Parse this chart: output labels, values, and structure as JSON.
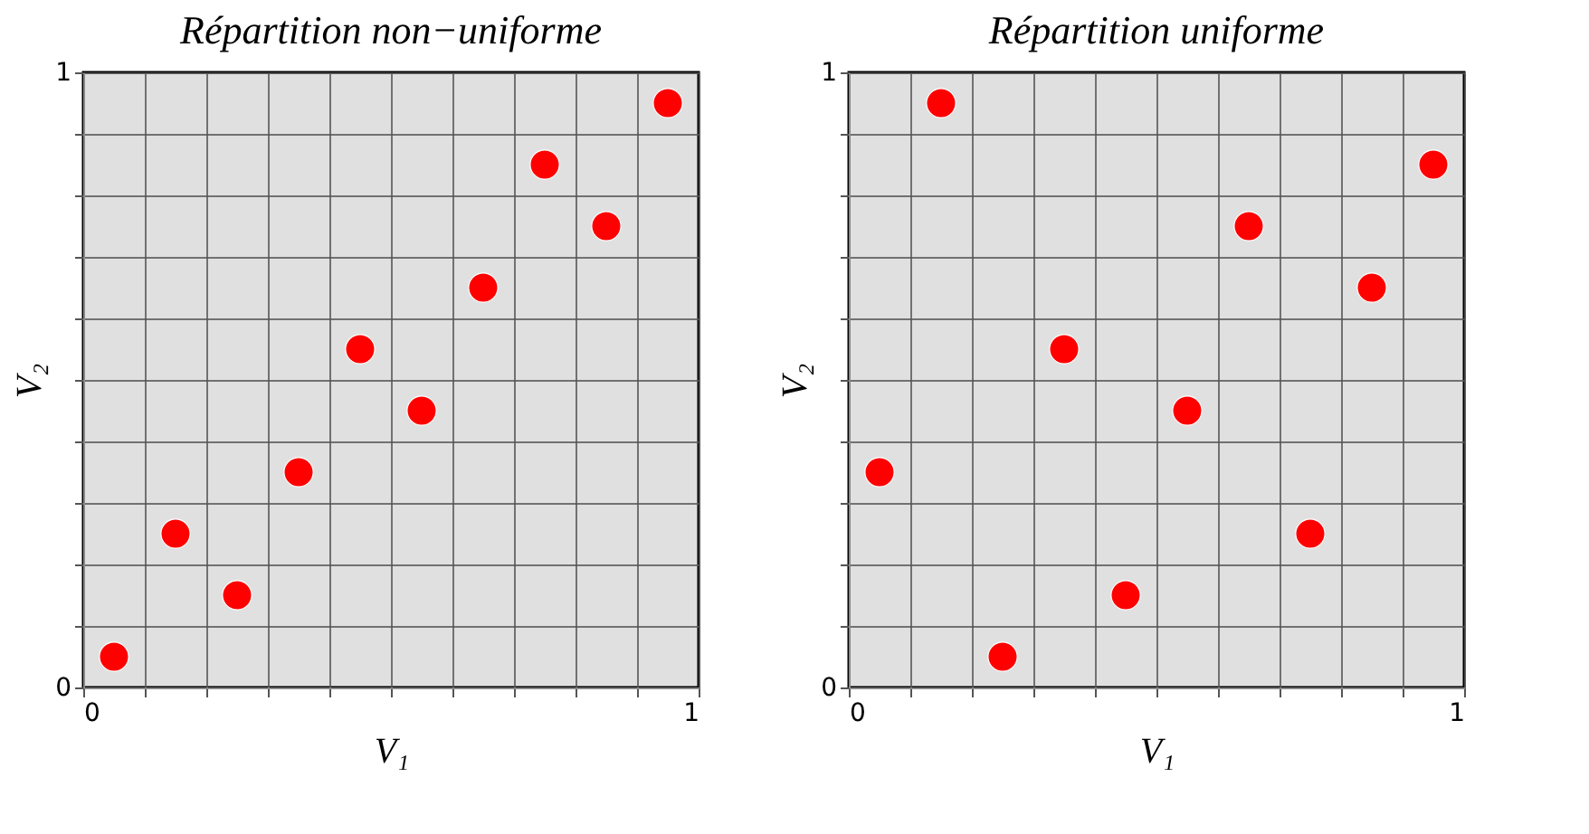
{
  "chart_data": [
    {
      "type": "scatter",
      "title": "Répartition non−uniforme",
      "xlabel": "V₁",
      "ylabel": "V₂",
      "x": [
        0.05,
        0.15,
        0.25,
        0.35,
        0.45,
        0.55,
        0.65,
        0.75,
        0.85,
        0.95
      ],
      "series": [
        {
          "color": "#ff0000",
          "values": [
            0.05,
            0.25,
            0.15,
            0.35,
            0.55,
            0.45,
            0.65,
            0.85,
            0.75,
            0.95
          ]
        }
      ],
      "xlim": [
        0,
        1
      ],
      "ylim": [
        0,
        1
      ],
      "xticks": [
        0,
        {
          "value": 0.1,
          "label": null
        },
        {
          "value": 0.2,
          "label": null
        },
        {
          "value": 0.3,
          "label": null
        },
        {
          "value": 0.4,
          "label": null
        },
        {
          "value": 0.5,
          "label": null
        },
        {
          "value": 0.6,
          "label": null
        },
        {
          "value": 0.7,
          "label": null
        },
        {
          "value": 0.8,
          "label": null
        },
        {
          "value": 0.9,
          "label": null
        },
        1
      ],
      "yticks": [
        0,
        {
          "value": 0.1,
          "label": null
        },
        {
          "value": 0.2,
          "label": null
        },
        {
          "value": 0.3,
          "label": null
        },
        {
          "value": 0.4,
          "label": null
        },
        {
          "value": 0.5,
          "label": null
        },
        {
          "value": 0.6,
          "label": null
        },
        {
          "value": 0.7,
          "label": null
        },
        {
          "value": 0.8,
          "label": null
        },
        {
          "value": 0.9,
          "label": null
        },
        1
      ],
      "grid": true,
      "marker": "circle"
    },
    {
      "type": "scatter",
      "title": "Répartition uniforme",
      "xlabel": "V₁",
      "ylabel": "V₂",
      "x": [
        0.05,
        0.15,
        0.25,
        0.35,
        0.45,
        0.55,
        0.65,
        0.75,
        0.85,
        0.95
      ],
      "series": [
        {
          "color": "#ff0000",
          "values": [
            0.35,
            0.95,
            0.05,
            0.55,
            0.15,
            0.45,
            0.75,
            0.25,
            0.65,
            0.85
          ]
        }
      ],
      "xlim": [
        0,
        1
      ],
      "ylim": [
        0,
        1
      ],
      "xticks": [
        0,
        {
          "value": 0.1,
          "label": null
        },
        {
          "value": 0.2,
          "label": null
        },
        {
          "value": 0.3,
          "label": null
        },
        {
          "value": 0.4,
          "label": null
        },
        {
          "value": 0.5,
          "label": null
        },
        {
          "value": 0.6,
          "label": null
        },
        {
          "value": 0.7,
          "label": null
        },
        {
          "value": 0.8,
          "label": null
        },
        {
          "value": 0.9,
          "label": null
        },
        1
      ],
      "yticks": [
        0,
        {
          "value": 0.1,
          "label": null
        },
        {
          "value": 0.2,
          "label": null
        },
        {
          "value": 0.3,
          "label": null
        },
        {
          "value": 0.4,
          "label": null
        },
        {
          "value": 0.5,
          "label": null
        },
        {
          "value": 0.6,
          "label": null
        },
        {
          "value": 0.7,
          "label": null
        },
        {
          "value": 0.8,
          "label": null
        },
        {
          "value": 0.9,
          "label": null
        },
        1
      ],
      "grid": true,
      "marker": "circle"
    }
  ]
}
